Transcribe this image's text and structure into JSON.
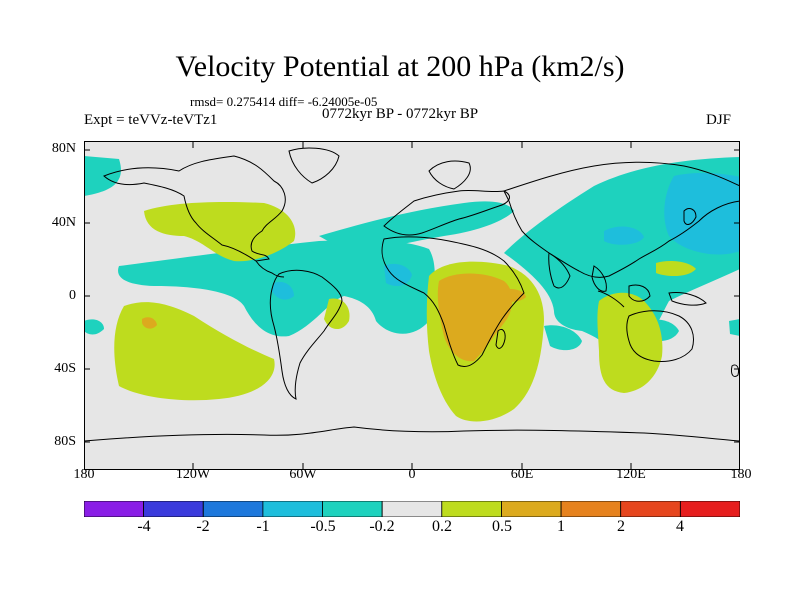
{
  "map": {
    "title": "Velocity Potential at 200 hPa (km2/s)",
    "stats": "rmsd= 0.275414 diff= -6.24005e-05",
    "experiment": "Expt = teVVz-teVTz1",
    "period": "0772kyr BP - 0772kyr BP",
    "season": "DJF",
    "lat_labels": [
      "80N",
      "40N",
      "0",
      "40S",
      "80S"
    ],
    "lon_labels": [
      "180",
      "120W",
      "60W",
      "0",
      "60E",
      "120E",
      "180"
    ]
  },
  "colorbar": {
    "levels": [
      "-4",
      "-2",
      "-1",
      "-0.5",
      "-0.2",
      "0.2",
      "0.5",
      "1",
      "2",
      "4"
    ],
    "colors": [
      "#8a1ee6",
      "#3b3bdc",
      "#1e78dc",
      "#1ebedc",
      "#1ed2be",
      "#e6e6e6",
      "#bedc1e",
      "#dcaa1e",
      "#e6821e",
      "#e6461e",
      "#e61e1e"
    ]
  }
}
